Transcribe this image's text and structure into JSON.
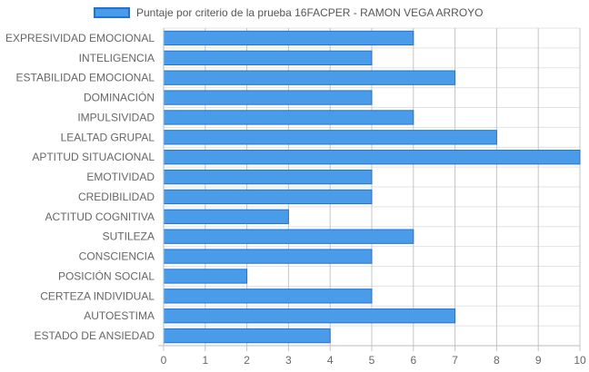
{
  "chart_data": {
    "type": "bar",
    "orientation": "horizontal",
    "title": "",
    "xlabel": "",
    "ylabel": "",
    "xlim": [
      0,
      10
    ],
    "ticks": [
      "0",
      "1",
      "2",
      "3",
      "4",
      "5",
      "6",
      "7",
      "8",
      "9",
      "10"
    ],
    "grid": true,
    "legend_position": "top",
    "categories": [
      "EXPRESIVIDAD EMOCIONAL",
      "INTELIGENCIA",
      "ESTABILIDAD EMOCIONAL",
      "DOMINACIÓN",
      "IMPULSIVIDAD",
      "LEALTAD GRUPAL",
      "APTITUD SITUACIONAL",
      "EMOTIVIDAD",
      "CREDIBILIDAD",
      "ACTITUD COGNITIVA",
      "SUTILEZA",
      "CONSCIENCIA",
      "POSICIÓN SOCIAL",
      "CERTEZA INDIVIDUAL",
      "AUTOESTIMA",
      "ESTADO DE ANSIEDAD"
    ],
    "series": [
      {
        "name": "Puntaje por criterio de la prueba 16FACPER - RAMON VEGA ARROYO",
        "values": [
          6,
          5,
          7,
          5,
          6,
          8,
          10,
          5,
          5,
          3,
          6,
          5,
          2,
          5,
          7,
          4
        ],
        "color": "#4a9be8",
        "border_color": "#1e73d8"
      }
    ]
  }
}
